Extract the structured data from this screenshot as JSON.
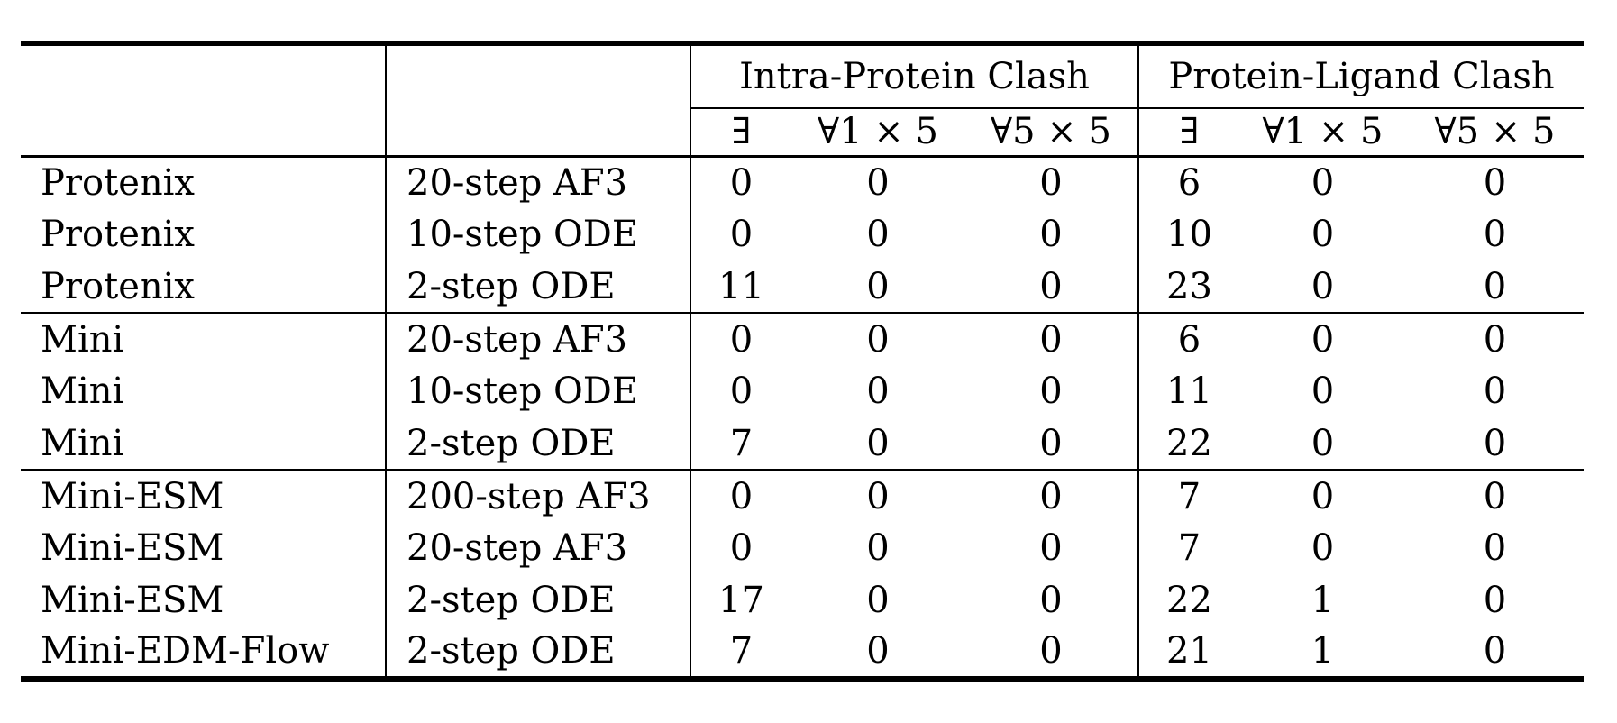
{
  "table": {
    "col_groups": [
      {
        "label": "Intra-Protein Clash"
      },
      {
        "label": "Protein-Ligand Clash"
      }
    ],
    "sub_headers": [
      "∃",
      "∀1 × 5",
      "∀5 × 5",
      "∃",
      "∀1 × 5",
      "∀5 × 5"
    ],
    "rows": [
      {
        "model": "Protenix",
        "method": "20-step AF3",
        "values": [
          "0",
          "0",
          "0",
          "6",
          "0",
          "0"
        ],
        "separator_above": false
      },
      {
        "model": "Protenix",
        "method": "10-step ODE",
        "values": [
          "0",
          "0",
          "0",
          "10",
          "0",
          "0"
        ],
        "separator_above": false
      },
      {
        "model": "Protenix",
        "method": "2-step ODE",
        "values": [
          "11",
          "0",
          "0",
          "23",
          "0",
          "0"
        ],
        "separator_above": false
      },
      {
        "model": "Mini",
        "method": "20-step AF3",
        "values": [
          "0",
          "0",
          "0",
          "6",
          "0",
          "0"
        ],
        "separator_above": true
      },
      {
        "model": "Mini",
        "method": "10-step ODE",
        "values": [
          "0",
          "0",
          "0",
          "11",
          "0",
          "0"
        ],
        "separator_above": false
      },
      {
        "model": "Mini",
        "method": "2-step ODE",
        "values": [
          "7",
          "0",
          "0",
          "22",
          "0",
          "0"
        ],
        "separator_above": false
      },
      {
        "model": "Mini-ESM",
        "method": "200-step AF3",
        "values": [
          "0",
          "0",
          "0",
          "7",
          "0",
          "0"
        ],
        "separator_above": true
      },
      {
        "model": "Mini-ESM",
        "method": "20-step AF3",
        "values": [
          "0",
          "0",
          "0",
          "7",
          "0",
          "0"
        ],
        "separator_above": false
      },
      {
        "model": "Mini-ESM",
        "method": "2-step ODE",
        "values": [
          "17",
          "0",
          "0",
          "22",
          "1",
          "0"
        ],
        "separator_above": false
      },
      {
        "model": "Mini-EDM-Flow",
        "method": "2-step ODE",
        "values": [
          "7",
          "0",
          "0",
          "21",
          "1",
          "0"
        ],
        "separator_above": false
      }
    ]
  }
}
